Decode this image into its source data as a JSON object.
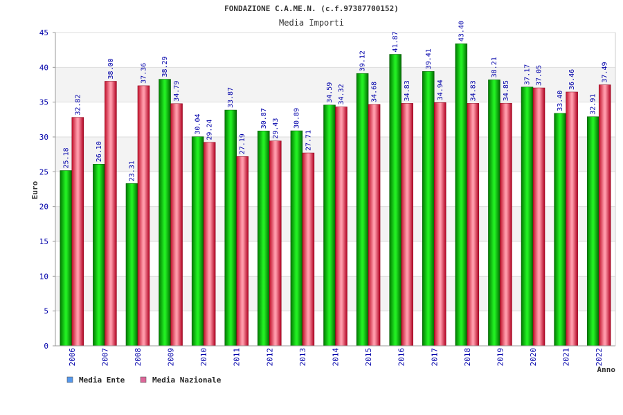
{
  "chart_data": {
    "type": "bar",
    "title": "FONDAZIONE C.A.ME.N. (c.f.97387700152)",
    "subtitle": "Media Importi",
    "xlabel": "Anno",
    "ylabel": "Euro",
    "ylim": [
      0,
      45
    ],
    "yticks": [
      "0",
      "5",
      "10",
      "15",
      "20",
      "25",
      "30",
      "35",
      "40",
      "45"
    ],
    "categories": [
      "2006",
      "2007",
      "2008",
      "2009",
      "2010",
      "2011",
      "2012",
      "2013",
      "2014",
      "2015",
      "2016",
      "2017",
      "2018",
      "2019",
      "2020",
      "2021",
      "2022"
    ],
    "series": [
      {
        "name": "Media Ente",
        "color": "#00c000",
        "legend_color": "#5599ee",
        "values": [
          25.18,
          26.1,
          23.31,
          38.29,
          30.04,
          33.87,
          30.87,
          30.89,
          34.59,
          39.12,
          41.87,
          39.41,
          43.4,
          38.21,
          37.17,
          33.4,
          32.91
        ],
        "labels": [
          "25.18",
          "26.10",
          "23.31",
          "38.29",
          "30.04",
          "33.87",
          "30.87",
          "30.89",
          "34.59",
          "39.12",
          "41.87",
          "39.41",
          "43.40",
          "38.21",
          "37.17",
          "33.40",
          "32.91"
        ]
      },
      {
        "name": "Media Nazionale",
        "color": "#e02040",
        "legend_color": "#dd6699",
        "values": [
          32.82,
          38.0,
          37.36,
          34.79,
          29.24,
          27.19,
          29.43,
          27.71,
          34.32,
          34.68,
          34.83,
          34.94,
          34.83,
          34.85,
          37.05,
          36.46,
          37.49
        ],
        "labels": [
          "32.82",
          "38.00",
          "37.36",
          "34.79",
          "29.24",
          "27.19",
          "29.43",
          "27.71",
          "34.32",
          "34.68",
          "34.83",
          "34.94",
          "34.83",
          "34.85",
          "37.05",
          "36.46",
          "37.49"
        ]
      }
    ],
    "grid": true,
    "legend_position": "bottom-left"
  }
}
